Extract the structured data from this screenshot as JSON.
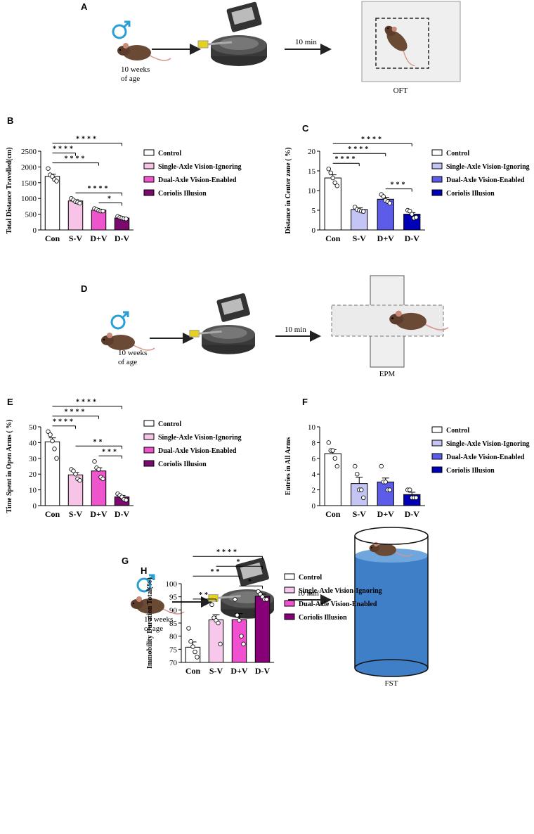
{
  "panels": [
    {
      "letter": "A",
      "age": [
        "10 weeks",
        "of age"
      ],
      "duration": "10 min",
      "test": "OFT"
    },
    {
      "letter": "D",
      "age": [
        "10 weeks",
        "of age"
      ],
      "duration": "10 min",
      "test": "EPM"
    },
    {
      "letter": "G",
      "age": [
        "10 weeks",
        "of age"
      ],
      "duration": "10 min",
      "test": "FST"
    }
  ],
  "chart_data": [
    {
      "type": "bar",
      "panel": "B",
      "y_label": "Total Distance Travelled(cm)",
      "categories": [
        "Con",
        "S-V",
        "D+V",
        "D-V"
      ],
      "legend": [
        "Control",
        "Single-Axle Vision-Ignoring",
        "Dual-Axle Vision-Enabled",
        "Coriolis Illusion"
      ],
      "colors": [
        "#ffffff",
        "#f7c4e8",
        "#ee55cc",
        "#7a0a6e"
      ],
      "values": [
        1700,
        920,
        630,
        380
      ],
      "errors": [
        70,
        40,
        30,
        20
      ],
      "points": [
        [
          1950,
          1750,
          1700,
          1600,
          1550
        ],
        [
          1000,
          950,
          900,
          880,
          850
        ],
        [
          680,
          650,
          620,
          600,
          600
        ],
        [
          430,
          400,
          380,
          360,
          350
        ]
      ],
      "ylim": [
        0,
        2500
      ],
      "yticks": [
        0,
        500,
        1000,
        1500,
        2000,
        2500
      ],
      "brackets": [
        {
          "from": "Con",
          "to": "D-V",
          "label": "****"
        },
        {
          "from": "Con",
          "to": "S-V",
          "label": "****"
        },
        {
          "from": "Con",
          "to": "D+V",
          "label": "****"
        },
        {
          "from": "S-V",
          "to": "D-V",
          "label": "****"
        },
        {
          "from": "D+V",
          "to": "D-V",
          "label": "*"
        }
      ]
    },
    {
      "type": "bar",
      "panel": "C",
      "y_label": "Distance in Center zone ( %)",
      "categories": [
        "Con",
        "S-V",
        "D+V",
        "D-V"
      ],
      "legend": [
        "Control",
        "Single-Axle Vision-Ignoring",
        "Dual-Axle Vision-Enabled",
        "Coriolis Illusion"
      ],
      "colors": [
        "#ffffff",
        "#c4c4f5",
        "#5c5ce8",
        "#0000b8"
      ],
      "values": [
        13.2,
        5.2,
        7.8,
        4.0
      ],
      "errors": [
        0.8,
        0.4,
        0.5,
        0.4
      ],
      "points": [
        [
          15.5,
          14.5,
          13.2,
          12,
          11.2
        ],
        [
          5.8,
          5.2,
          5,
          4.8,
          4.7
        ],
        [
          9,
          8.5,
          7.5,
          7.2,
          6.8
        ],
        [
          5,
          4.8,
          4,
          3,
          3.2
        ]
      ],
      "ylim": [
        0,
        20
      ],
      "yticks": [
        0,
        5,
        10,
        15,
        20
      ],
      "brackets": [
        {
          "from": "Con",
          "to": "D-V",
          "label": "****"
        },
        {
          "from": "Con",
          "to": "D+V",
          "label": "****"
        },
        {
          "from": "Con",
          "to": "S-V",
          "label": "****"
        },
        {
          "from": "D+V",
          "to": "D-V",
          "label": "***"
        }
      ]
    },
    {
      "type": "bar",
      "panel": "E",
      "y_label": "Time Spent in Open Arms ( %)",
      "categories": [
        "Con",
        "S-V",
        "D+V",
        "D-V"
      ],
      "legend": [
        "Control",
        "Single-Axle Vision-Ignoring",
        "Dual-Axle Vision-Enabled",
        "Coriolis Illusion"
      ],
      "colors": [
        "#ffffff",
        "#f7c4e8",
        "#ee55cc",
        "#7a0a6e"
      ],
      "values": [
        40.5,
        19.5,
        22,
        5.5
      ],
      "errors": [
        2.5,
        1.5,
        2,
        1
      ],
      "points": [
        [
          47,
          45,
          41,
          36,
          30
        ],
        [
          23,
          22,
          20,
          17,
          16
        ],
        [
          28,
          24,
          23,
          18,
          17
        ],
        [
          7.5,
          6.5,
          5.5,
          4,
          3.5
        ]
      ],
      "ylim": [
        0,
        50
      ],
      "yticks": [
        0,
        10,
        20,
        30,
        40,
        50
      ],
      "brackets": [
        {
          "from": "Con",
          "to": "D-V",
          "label": "****"
        },
        {
          "from": "Con",
          "to": "D+V",
          "label": "****"
        },
        {
          "from": "Con",
          "to": "S-V",
          "label": "****"
        },
        {
          "from": "S-V",
          "to": "D-V",
          "label": "**"
        },
        {
          "from": "D+V",
          "to": "D-V",
          "label": "***"
        }
      ]
    },
    {
      "type": "bar",
      "panel": "F",
      "y_label": "Entries in All Arms",
      "categories": [
        "Con",
        "S-V",
        "D+V",
        "D-V"
      ],
      "legend": [
        "Control",
        "Single-Axle Vision-Ignoring",
        "Dual-Axle Vision-Enabled",
        "Coriolis Illusion"
      ],
      "colors": [
        "#ffffff",
        "#c4c4f5",
        "#5c5ce8",
        "#0000b8"
      ],
      "values": [
        6.6,
        2.8,
        3.0,
        1.4
      ],
      "errors": [
        0.5,
        0.8,
        0.5,
        0.3
      ],
      "points": [
        [
          8,
          7,
          7,
          6,
          5
        ],
        [
          5,
          4,
          2,
          2,
          1
        ],
        [
          5,
          3,
          3,
          2,
          2
        ],
        [
          2,
          2,
          1,
          1,
          1
        ]
      ],
      "ylim": [
        0,
        10
      ],
      "yticks": [
        0,
        2,
        4,
        6,
        8,
        10
      ],
      "brackets": []
    },
    {
      "type": "bar",
      "panel": "H",
      "y_label": "Immobility Duration Total(%)",
      "categories": [
        "Con",
        "S-V",
        "D+V",
        "D-V"
      ],
      "legend": [
        "Control",
        "Single-Axle Vision-Ignoring",
        "Dual-Axle Vision-Enabled",
        "Coriolis Illusion"
      ],
      "colors": [
        "#ffffff",
        "#f8c8ec",
        "#f050d0",
        "#880077"
      ],
      "values": [
        75.8,
        86.2,
        86.3,
        95.2
      ],
      "errors": [
        2,
        2,
        2.3,
        0.8
      ],
      "points": [
        [
          83,
          78,
          76,
          74,
          72
        ],
        [
          92,
          87,
          86,
          85,
          77
        ],
        [
          94,
          88,
          86,
          80,
          77
        ],
        [
          97,
          96,
          95,
          94,
          94
        ]
      ],
      "ylim": [
        70,
        100
      ],
      "yticks": [
        70,
        75,
        80,
        85,
        90,
        95,
        100
      ],
      "brackets": [
        {
          "from": "Con",
          "to": "D-V",
          "label": "****"
        },
        {
          "from": "S-V",
          "to": "D-V",
          "label": "*"
        },
        {
          "from": "Con",
          "to": "D+V",
          "label": "**"
        },
        {
          "from": "D+V",
          "to": "D-V",
          "label": "*"
        },
        {
          "from": "Con",
          "to": "S-V",
          "label": "**"
        }
      ]
    }
  ]
}
